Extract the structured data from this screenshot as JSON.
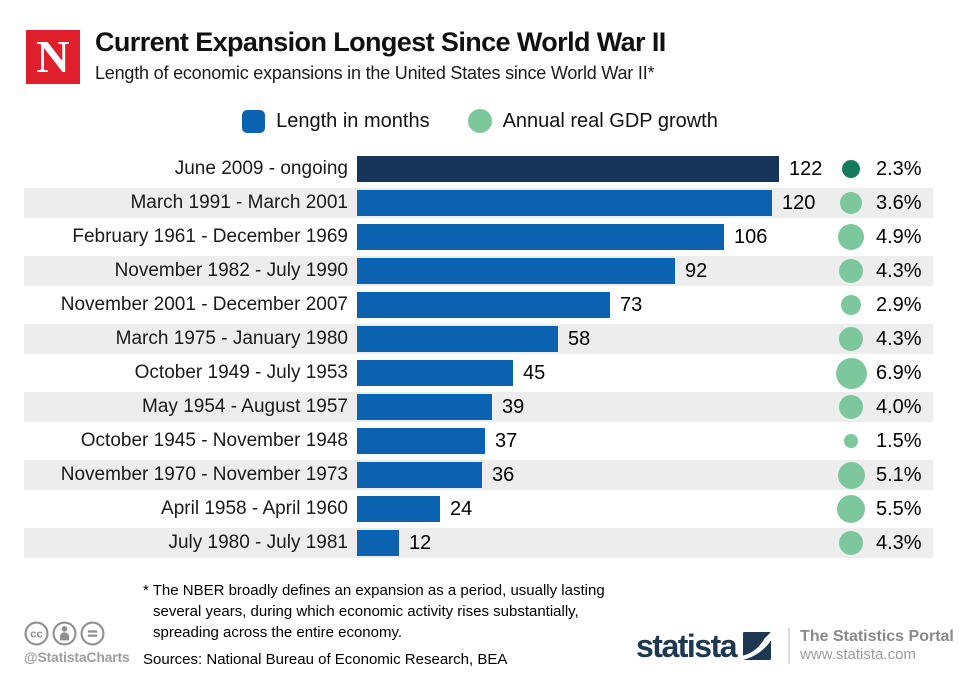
{
  "header": {
    "logo_letter": "N",
    "title": "Current Expansion Longest Since World War II",
    "subtitle": "Length of economic expansions in the United States since World War II*"
  },
  "legend": {
    "months_label": "Length in months",
    "gdp_label": "Annual real GDP growth"
  },
  "chart_data": {
    "type": "bar",
    "orientation": "horizontal",
    "title": "Current Expansion Longest Since World War II",
    "subtitle": "Length of economic expansions in the United States since World War II*",
    "categories": [
      "June 2009 - ongoing",
      "March 1991 - March 2001",
      "February 1961 - December 1969",
      "November 1982 - July 1990",
      "November 2001 - December 2007",
      "March 1975 - January 1980",
      "October 1949 - July 1953",
      "May 1954 - August 1957",
      "October 1945 - November 1948",
      "November 1970 - November 1973",
      "April 1958 - April 1960",
      "July 1980 - July 1981"
    ],
    "series": [
      {
        "name": "Length in months",
        "values": [
          122,
          120,
          106,
          92,
          73,
          58,
          45,
          39,
          37,
          36,
          24,
          12
        ]
      },
      {
        "name": "Annual real GDP growth",
        "unit": "%",
        "values": [
          2.3,
          3.6,
          4.9,
          4.3,
          2.9,
          4.3,
          6.9,
          4.0,
          1.5,
          5.1,
          5.5,
          4.3
        ]
      }
    ],
    "highlight_index": 0,
    "xlim": [
      0,
      131
    ],
    "grid": false,
    "legend_position": "top",
    "zebra_striping": true
  },
  "footer": {
    "footnote": "* The NBER broadly defines an expansion as a period, usually lasting several years, during which economic activity rises substantially, spreading across the entire economy.",
    "sources": "Sources: National Bureau of Economic Research, BEA",
    "credit": "@StatistaCharts",
    "brand": "statista",
    "portal": "The Statistics Portal",
    "url": "www.statista.com"
  },
  "colors": {
    "bar_blue": "#0b62b0",
    "bar_navy": "#17355a",
    "circle_green": "#7cc79b",
    "circle_teal": "#157a5b",
    "stripe": "#ededed",
    "newsweek_red": "#e01f2c",
    "statista_navy": "#1d3850",
    "gray_icon": "#8f8f8f"
  }
}
